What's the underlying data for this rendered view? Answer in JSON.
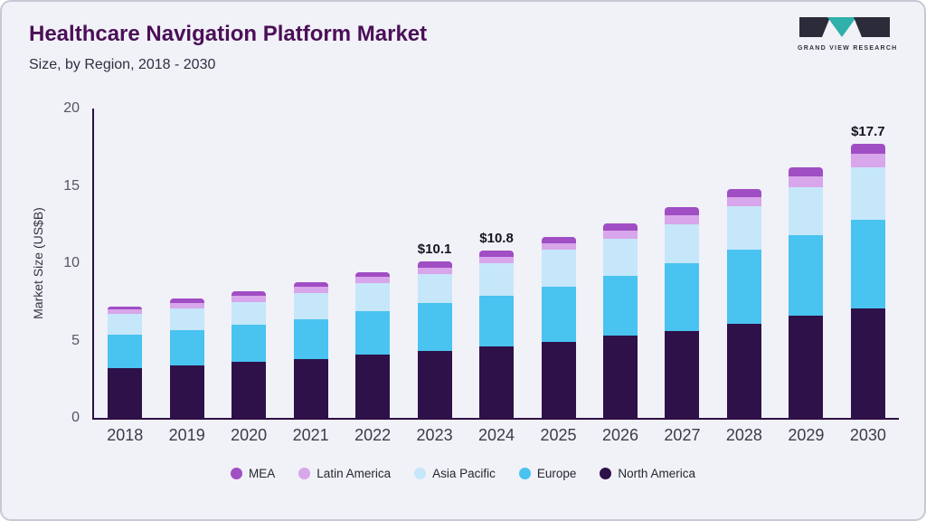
{
  "header": {
    "title": "Healthcare Navigation Platform Market",
    "subtitle": "Size, by Region, 2018 - 2030"
  },
  "logo": {
    "text": "GRAND VIEW RESEARCH",
    "dark_color": "#2b2b3a",
    "teal_color": "#2fb0aa"
  },
  "chart_data": {
    "type": "bar",
    "stacked": true,
    "title": "Healthcare Navigation Platform Market Size, by Region, 2018 - 2030",
    "ylabel": "Market Size (US$B)",
    "xlabel": "",
    "ylim": [
      0,
      20
    ],
    "yticks": [
      0,
      5,
      10,
      15,
      20
    ],
    "grid": false,
    "legend_position": "bottom",
    "categories": [
      "2018",
      "2019",
      "2020",
      "2021",
      "2022",
      "2023",
      "2024",
      "2025",
      "2026",
      "2027",
      "2028",
      "2029",
      "2030"
    ],
    "series": [
      {
        "name": "North America",
        "color": "#2e1148",
        "values": [
          3.2,
          3.4,
          3.6,
          3.8,
          4.1,
          4.3,
          4.6,
          4.9,
          5.3,
          5.6,
          6.1,
          6.6,
          7.1
        ]
      },
      {
        "name": "Europe",
        "color": "#49c3f0",
        "values": [
          2.2,
          2.3,
          2.4,
          2.6,
          2.8,
          3.1,
          3.3,
          3.6,
          3.9,
          4.4,
          4.8,
          5.2,
          5.7
        ]
      },
      {
        "name": "Asia Pacific",
        "color": "#c6e7fa",
        "values": [
          1.3,
          1.4,
          1.5,
          1.7,
          1.8,
          1.9,
          2.1,
          2.4,
          2.4,
          2.5,
          2.8,
          3.1,
          3.4
        ]
      },
      {
        "name": "Latin America",
        "color": "#d8a6ea",
        "values": [
          0.3,
          0.3,
          0.4,
          0.4,
          0.4,
          0.4,
          0.4,
          0.4,
          0.5,
          0.6,
          0.6,
          0.7,
          0.9
        ]
      },
      {
        "name": "MEA",
        "color": "#a04ec4",
        "values": [
          0.2,
          0.3,
          0.3,
          0.3,
          0.3,
          0.4,
          0.4,
          0.4,
          0.5,
          0.5,
          0.5,
          0.6,
          0.6
        ]
      }
    ],
    "totals": [
      7.2,
      7.7,
      8.2,
      8.8,
      9.4,
      10.1,
      10.8,
      11.7,
      12.6,
      13.6,
      14.8,
      16.2,
      17.7
    ],
    "legend_order": [
      "MEA",
      "Latin America",
      "Asia Pacific",
      "Europe",
      "North America"
    ],
    "annotations": [
      {
        "category": "2023",
        "label": "$10.1"
      },
      {
        "category": "2024",
        "label": "$10.8"
      },
      {
        "category": "2030",
        "label": "$17.7"
      }
    ]
  }
}
